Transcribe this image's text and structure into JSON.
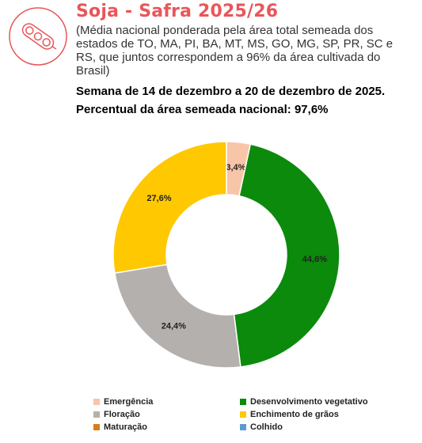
{
  "header": {
    "title": "Soja - Safra 2025/26",
    "subtitle": "(Média nacional ponderada pela área total semeada dos estados de TO, MA, PI, BA, MT, MS, GO, MG, SP, PR, SC e RS, que juntos correspondem a 96% da área cultivada do Brasil)",
    "week": "Semana de 14 de dezembro a 20 de dezembro de 2025.",
    "share": "Percentual da área semeada nacional: 97,6%"
  },
  "logo": {
    "icon": "soybean-pod-icon",
    "color": "#e8565a"
  },
  "chart_data": {
    "type": "pie",
    "variant": "donut",
    "categories": [
      "Emergência",
      "Desenvolvimento vegetativo",
      "Floração",
      "Enchimento de grãos",
      "Maturação",
      "Colhido"
    ],
    "values": [
      3.4,
      44.6,
      24.4,
      27.6,
      0,
      0
    ],
    "labels": [
      "3,4%",
      "44,6%",
      "24,4%",
      "27,6%",
      "",
      ""
    ],
    "colors": [
      "#f8c5a8",
      "#0b8a0b",
      "#b4b0ae",
      "#ffc800",
      "#d77e1a",
      "#5b9bd5"
    ],
    "legend": "bottom"
  }
}
